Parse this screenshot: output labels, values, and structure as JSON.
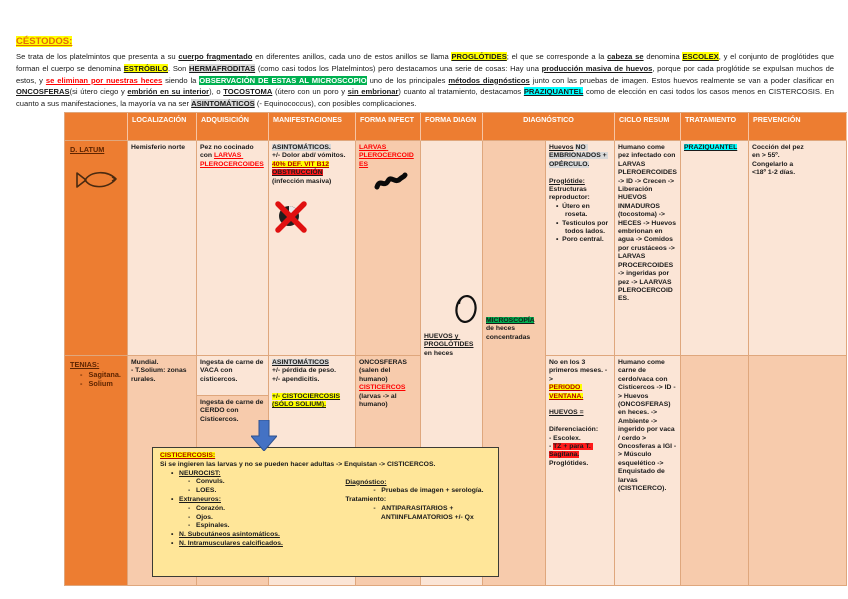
{
  "title": "CÉSTODOS:",
  "intro_segments": [
    [
      {
        "t": "Se trata de los platelmintos que presenta a su "
      },
      {
        "t": "cuerpo fragmentado",
        "c": "b u"
      },
      {
        "t": " en diferentes anillos, cada uno de estos anillos se llama "
      },
      {
        "t": "PROGLÓTIDES",
        "c": "b u hl-yellow"
      },
      {
        "t": "; el que se corresponde a la "
      },
      {
        "t": "cabeza se",
        "c": "b u"
      },
      {
        "t": " denomina "
      },
      {
        "t": "ESCOLEX",
        "c": "b u hl-yellow"
      },
      {
        "t": ", y el conjunto de proglótides que forman el cuerpo se denomina "
      },
      {
        "t": "ESTRÓBILO",
        "c": "b u hl-yellow"
      },
      {
        "t": ". Son "
      },
      {
        "t": "HERMAFRODITAS",
        "c": "b u hl-gray"
      },
      {
        "t": " (como casi todos los Platelmintos) pero destacamos una serie de cosas: Hay una "
      },
      {
        "t": "producción masiva de huevos",
        "c": "b u"
      },
      {
        "t": ", porque por cada proglótide se expulsan muchos de estos, y "
      },
      {
        "t": "se eliminan por nuestras heces",
        "c": "b u red"
      },
      {
        "t": " siendo la "
      },
      {
        "t": "OBSERVACIÓN DE ESTAS AL MICROSCOPIO",
        "c": "b hl-green white"
      },
      {
        "t": " uno de los principales "
      },
      {
        "t": "métodos diagnósticos",
        "c": "b u"
      },
      {
        "t": " junto con las pruebas de imagen. Estos huevos realmente se van a poder clasificar en "
      },
      {
        "t": "ONCOSFERAS",
        "c": "b u"
      },
      {
        "t": "(si útero ciego y "
      },
      {
        "t": "embrión en su interior",
        "c": "b u"
      },
      {
        "t": "), o "
      },
      {
        "t": "TOCOSTOMA",
        "c": "b u"
      },
      {
        "t": " (útero con un poro y "
      },
      {
        "t": "sin embrionar",
        "c": "b u"
      },
      {
        "t": ") cuanto al tratamiento, destacamos "
      },
      {
        "t": "PRAZIQUANTEL",
        "c": "b u hl-cyan"
      },
      {
        "t": " como de elección en casi todos los casos menos en CISTERCOSIS. En cuanto a sus manifestaciones, la mayoría va na ser "
      },
      {
        "t": "ASINTOMÁTICOS",
        "c": "b u hl-gray"
      },
      {
        "t": " (- Equinococcus), con posibles complicaciones."
      }
    ]
  ],
  "table": {
    "headers": [
      "",
      "LOCALIZACIÓN",
      "ADQUISICIÓN",
      "MANIFESTACIONES",
      "FORMA INFECT",
      "FORMA DIAGN",
      "DIAGNÓSTICO",
      "CICLO RESUM",
      "TRATAMIENTO",
      "PREVENCIÓN"
    ],
    "rows": {
      "dlatum": {
        "label": [
          [
            {
              "t": "D. LATUM",
              "c": "u"
            }
          ]
        ],
        "localizacion": [
          [
            {
              "t": "Hemisferio norte"
            }
          ]
        ],
        "adquisicion": [
          [
            {
              "t": "Pez no cocinado con "
            },
            {
              "t": "LARVAS PLEROCERCOIDES",
              "c": "red u"
            }
          ]
        ],
        "manifestaciones": [
          [
            {
              "t": "ASINTOMÁTICOS.",
              "c": "hl-gray"
            }
          ],
          [
            {
              "t": "+/- Dolor abd/ vómitos."
            }
          ],
          [
            {
              "t": "40% DEF. VIT B12",
              "c": "hl-yellow u dred"
            }
          ],
          [
            {
              "t": "OBSTRUCCIÓN",
              "c": "hl-red u"
            }
          ],
          [
            {
              "t": "(infección masiva)"
            }
          ]
        ],
        "forma_infect": [
          [
            {
              "t": "LARVAS PLEROCERCOIDES",
              "c": "red u"
            }
          ]
        ],
        "forma_diagn": [
          [
            {
              "t": "HUEVOS y PROGLÓTIDES",
              "c": "u"
            },
            {
              "t": " en heces"
            }
          ]
        ],
        "diagnostico_izq": [
          [
            {
              "t": "MICROSCOPÍA",
              "c": "hl-green u"
            },
            {
              "t": " de heces concentradas"
            }
          ]
        ],
        "diagnostico_der": [
          [
            {
              "t": "Huevos",
              "c": "u"
            },
            {
              "t": " "
            },
            {
              "t": "NO EMBRIONADOS + OPÉRCULO.",
              "c": "hl-gray"
            }
          ],
          [],
          [
            {
              "t": "Proglótide:",
              "c": "u"
            }
          ],
          [
            {
              "t": "Estructuras reproductor:"
            }
          ],
          {
            "c": "li1",
            "s": [
              {
                "t": "•  "
              },
              {
                "t": "Útero en roseta."
              }
            ]
          },
          {
            "c": "li1",
            "s": [
              {
                "t": "•  "
              },
              {
                "t": "Testiculos por todos lados."
              }
            ]
          },
          {
            "c": "li1",
            "s": [
              {
                "t": "•  "
              },
              {
                "t": "Poro central."
              }
            ]
          }
        ],
        "ciclo_resum": [
          [
            {
              "t": "Humano come pez infectado con LARVAS PLEROERCOIDES -> ID -> Crecen -> Liberación HUEVOS INMADUROS (tocostoma) -> HECES -> Huevos embrionan en agua -> Comidos por crustáceos -> LARVAS PROCERCOIDES -> ingeridas por pez -> LAARVAS PLEROCERCOIDES."
            }
          ]
        ],
        "tratamiento": [
          [
            {
              "t": "PRAZIQUANTEL",
              "c": "hl-cyan u"
            }
          ]
        ],
        "prevencion": [
          [
            {
              "t": "Cocción del pez en > 55º. Congelarlo a <18º 1-2 días."
            }
          ]
        ]
      },
      "tenias": {
        "label": [
          [
            {
              "t": "TENIAS:",
              "c": "u"
            }
          ],
          {
            "c": "li2",
            "s": [
              {
                "t": "-   "
              },
              {
                "t": "Sagitana."
              }
            ]
          },
          {
            "c": "li2",
            "s": [
              {
                "t": "-   "
              },
              {
                "t": "Solium"
              }
            ]
          }
        ],
        "localizacion": [
          [
            {
              "t": "Mundial."
            }
          ],
          [
            {
              "t": "- T.Solium: zonas rurales."
            }
          ]
        ],
        "adquisicion_vaca": [
          [
            {
              "t": "Ingesta de carne de VACA con cisticercos."
            }
          ]
        ],
        "adquisicion_cerdo": [
          [
            {
              "t": "Ingesta de carne de CERDO con Cisticercos."
            }
          ]
        ],
        "manifestaciones": [
          [
            {
              "t": "ASINTOMÁTICOS",
              "c": "hl-gray u"
            }
          ],
          [
            {
              "t": "+/- pérdida de peso."
            }
          ],
          [
            {
              "t": "+/- apendicitis."
            }
          ],
          [],
          [
            {
              "t": "+/- ",
              "c": "hl-yellow"
            },
            {
              "t": "CISTOCIERCOSIS",
              "c": "hl-yellow u"
            }
          ],
          [
            {
              "t": "(SÓLO SOLIUM).",
              "c": "hl-yellow u"
            }
          ]
        ],
        "forma_infect": [
          [
            {
              "t": "ONCOSFERAS"
            }
          ],
          [
            {
              "t": "(salen del humano)"
            }
          ],
          [
            {
              "t": "CISTICERCOS",
              "c": "red u"
            }
          ],
          [
            {
              "t": "(larvas -> al humano)"
            }
          ]
        ],
        "diagnostico": [
          [
            {
              "t": "No en los 3 primeros meses. -> "
            }
          ],
          [
            {
              "t": "PERIODO VENTANA.",
              "c": "hl-yellow u dred"
            }
          ],
          [],
          [
            {
              "t": "HUEVOS =",
              "c": "u"
            }
          ],
          [],
          [
            {
              "t": "Diferenciación:"
            }
          ],
          [
            {
              "t": "- Escolex."
            }
          ],
          [
            {
              "t": "- "
            },
            {
              "t": "TZ + para T. Sagitana.",
              "c": "hl-red"
            }
          ],
          [
            {
              "t": "Proglótides."
            }
          ]
        ],
        "ciclo_resum": [
          [
            {
              "t": "Humano come carne de cerdo/vaca con Cisticercos -> ID -> Huevos (ONCOSFERAS) en heces. -> Ambiente -> ingerido por vaca / cerdo > Oncosferas a IGI -> Músculo esquelético -> Enquistado de larvas (CISTICERCO)."
            }
          ]
        ],
        "tratamiento": [],
        "prevencion": []
      }
    }
  },
  "note_box": {
    "title": [
      [
        {
          "t": "CISTICERCOSIS:",
          "c": "hl-yellow u dred"
        }
      ]
    ],
    "intro": [
      [
        {
          "t": "Si se ingieren las larvas y no se pueden hacer adultas -> Enquistan -> CISTICERCOS."
        }
      ]
    ],
    "left_list": [
      {
        "c": "nb1",
        "s": [
          {
            "t": "•   "
          },
          {
            "t": "NEUROCIST:",
            "c": "u"
          }
        ]
      },
      {
        "c": "nb2",
        "s": [
          {
            "t": "-   "
          },
          {
            "t": "Convuls."
          }
        ]
      },
      {
        "c": "nb2",
        "s": [
          {
            "t": "-   "
          },
          {
            "t": "LOES."
          }
        ]
      },
      {
        "c": "nb1",
        "s": [
          {
            "t": "•   "
          },
          {
            "t": "Extraneuros:",
            "c": "u"
          }
        ]
      },
      {
        "c": "nb2",
        "s": [
          {
            "t": "-   "
          },
          {
            "t": "Corazón."
          }
        ]
      },
      {
        "c": "nb2",
        "s": [
          {
            "t": "-   "
          },
          {
            "t": "Ojos."
          }
        ]
      },
      {
        "c": "nb2",
        "s": [
          {
            "t": "-   "
          },
          {
            "t": "Espinales."
          }
        ]
      },
      {
        "c": "nb1",
        "s": [
          {
            "t": "•   "
          },
          {
            "t": "N. Subcutáneos asintomáticos.",
            "c": "u"
          }
        ]
      },
      {
        "c": "nb1",
        "s": [
          {
            "t": "•   "
          },
          {
            "t": "N. Intramusculares calcificados.",
            "c": "u"
          }
        ]
      }
    ],
    "right_list": [
      [
        {
          "t": "Diagnóstico:",
          "c": "u"
        }
      ],
      {
        "c": "nb2",
        "s": [
          {
            "t": "-   "
          },
          {
            "t": "Pruebas de imagen + serología."
          }
        ]
      },
      [
        {
          "t": "Tratamiento:"
        }
      ],
      {
        "c": "nb2",
        "s": [
          {
            "t": "-   "
          },
          {
            "t": "ANTIPARASITARIOS +"
          }
        ]
      },
      {
        "c": "nb2",
        "s": [
          {
            "t": "    "
          },
          {
            "t": "ANTIINFLAMATORIOS +/- Qx"
          }
        ]
      }
    ]
  },
  "icons": [
    "fish-icon",
    "larva-icon",
    "egg-icon",
    "crossed-circle-icon",
    "down-arrow-icon"
  ],
  "colors": {
    "header_orange": "#ED7D31",
    "cell_light": "#FBE5D6",
    "cell_medium": "#F7CBAC",
    "highlight_yellow": "#FFFF00",
    "highlight_green": "#00B050",
    "highlight_cyan": "#00FFFF",
    "highlight_gray": "#D8D8D8",
    "highlight_red": "#FF0000",
    "note_box_bg": "#FFE699",
    "arrow_blue": "#4472C4",
    "title_orange": "#E36C0A"
  }
}
